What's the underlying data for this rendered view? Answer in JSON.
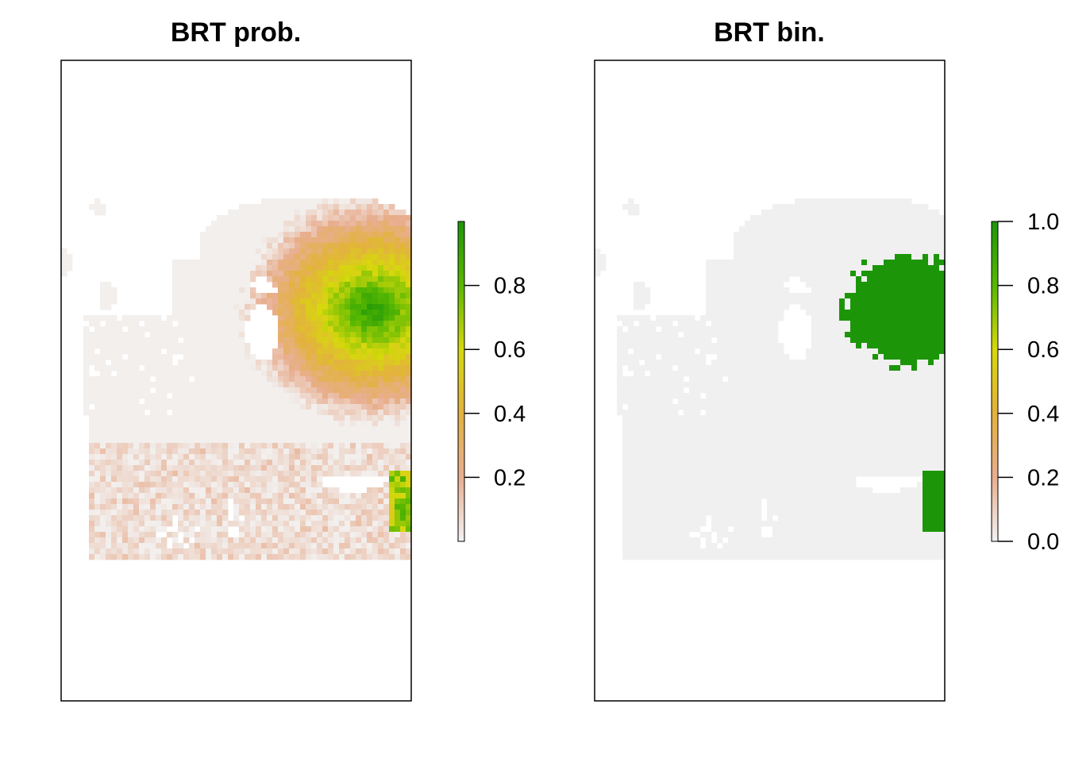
{
  "panels": [
    {
      "title": "BRT prob.",
      "kind": "probability",
      "legend_ticks": [
        "0.2",
        "0.4",
        "0.6",
        "0.8"
      ],
      "legend_range": [
        0.0,
        1.0
      ]
    },
    {
      "title": "BRT bin.",
      "kind": "binary",
      "legend_ticks": [
        "0.0",
        "0.2",
        "0.4",
        "0.6",
        "0.8",
        "1.0"
      ],
      "legend_range": [
        0.0,
        1.0
      ]
    }
  ],
  "colors": {
    "absence": "#f0f0f0",
    "presence": "#1c9608",
    "scale_low": "#f2f2f2",
    "scale_0_2": "#e8ae90",
    "scale_0_4": "#e3b23e",
    "scale_0_6": "#d6d80c",
    "scale_0_8": "#59b802",
    "scale_high": "#1c9608"
  }
}
